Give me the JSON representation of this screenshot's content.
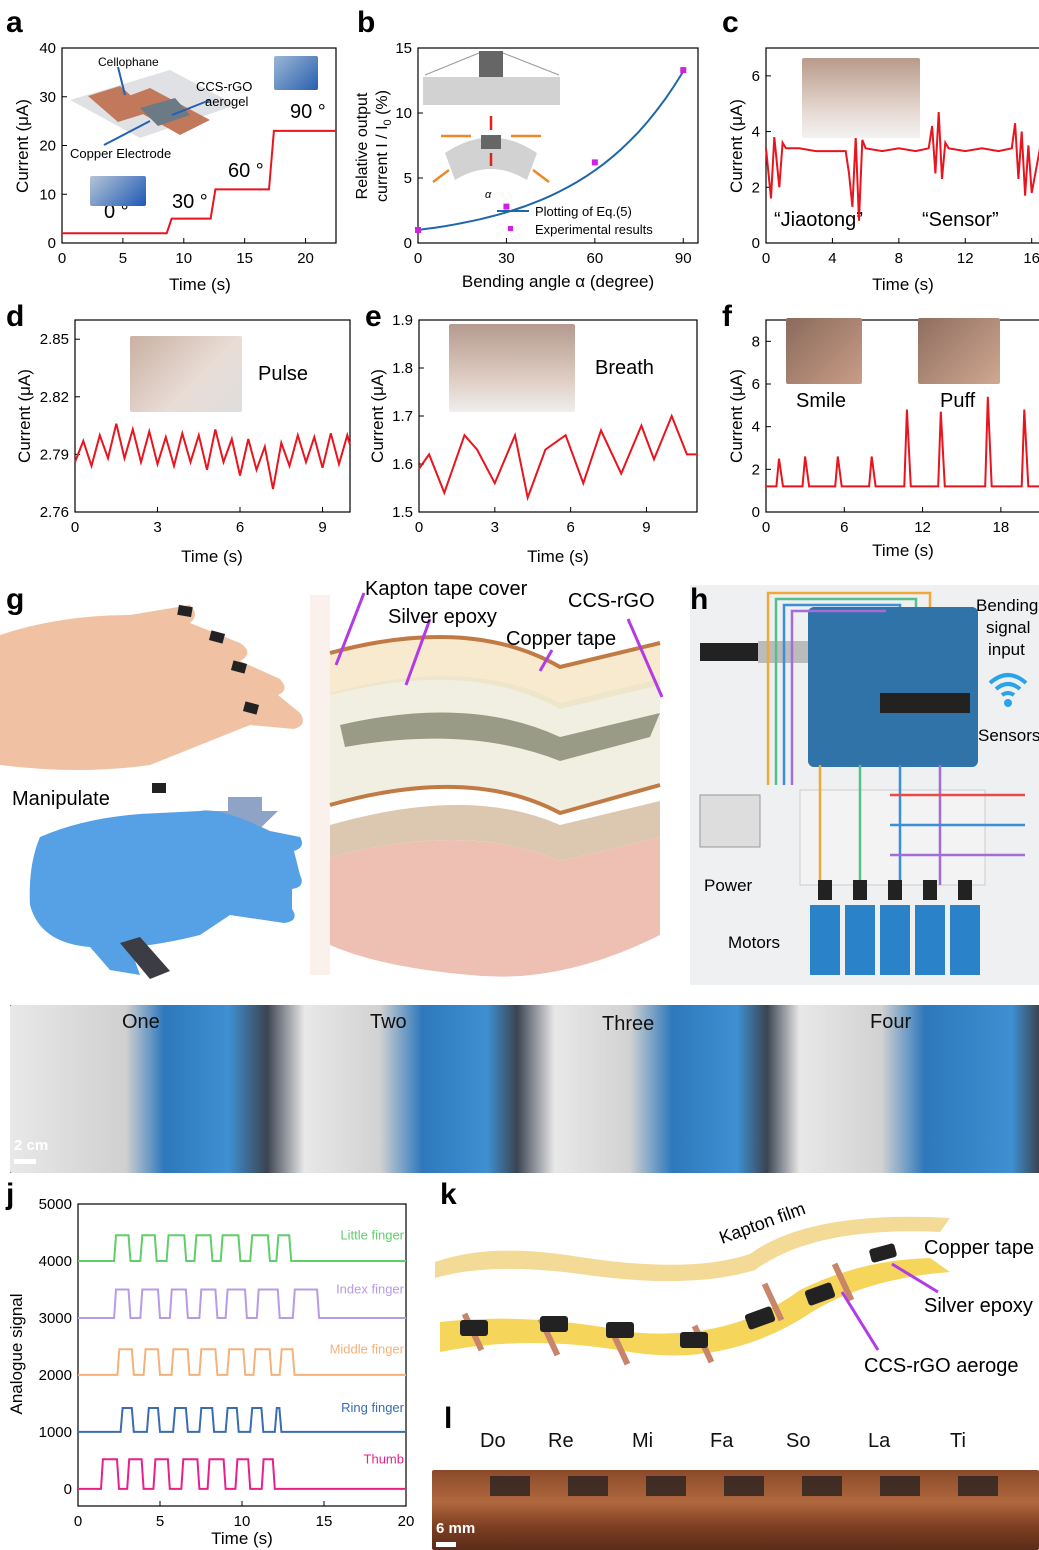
{
  "colors": {
    "red": "#e8141e",
    "blue": "#1f67a8",
    "magenta": "#d020e0",
    "purple": "#b640e6"
  },
  "panels": {
    "a": {
      "label": "a",
      "xlabel": "Time (s)",
      "ylabel": "Current (μA)",
      "xticks": [
        "0",
        "5",
        "10",
        "15",
        "20"
      ],
      "yticks": [
        "0",
        "10",
        "20",
        "30",
        "40"
      ],
      "angles": [
        "0 °",
        "30 °",
        "60 °",
        "90 °"
      ],
      "inset": {
        "cellophane": "Cellophane",
        "aerogel1": "CCS-rGO",
        "aerogel2": "aerogel",
        "copper": "Copper Electrode"
      }
    },
    "b": {
      "label": "b",
      "xlabel": "Bending angle α (degree)",
      "ylabel1": "Relative output",
      "ylabel2": "current I / I",
      "ylabel2sub": "0",
      "ylabel2end": " (%)",
      "xticks": [
        "0",
        "30",
        "60",
        "90"
      ],
      "yticks": [
        "0",
        "5",
        "10",
        "15"
      ],
      "legend": [
        "Plotting of Eq.(5)",
        "Experimental results"
      ],
      "alpha": "α"
    },
    "c": {
      "label": "c",
      "xlabel": "Time (s)",
      "ylabel": "Current (μA)",
      "xticks": [
        "0",
        "4",
        "8",
        "12",
        "16"
      ],
      "yticks": [
        "0",
        "2",
        "4",
        "6"
      ],
      "words": [
        "“Jiaotong”",
        "“Sensor”"
      ]
    },
    "d": {
      "label": "d",
      "xlabel": "Time (s)",
      "ylabel": "Current (μA)",
      "xticks": [
        "0",
        "3",
        "6",
        "9"
      ],
      "yticks": [
        "2.76",
        "2.79",
        "2.82",
        "2.85"
      ],
      "note": "Pulse"
    },
    "e": {
      "label": "e",
      "xlabel": "Time (s)",
      "ylabel": "Current (μA)",
      "xticks": [
        "0",
        "3",
        "6",
        "9"
      ],
      "yticks": [
        "1.5",
        "1.6",
        "1.7",
        "1.8",
        "1.9"
      ],
      "note": "Breath"
    },
    "f": {
      "label": "f",
      "xlabel": "Time (s)",
      "ylabel": "Current (μA)",
      "xticks": [
        "0",
        "6",
        "12",
        "18"
      ],
      "yticks": [
        "0",
        "2",
        "4",
        "6",
        "8"
      ],
      "notes": [
        "Smile",
        "Puff"
      ]
    },
    "g": {
      "label": "g",
      "manipulate": "Manipulate",
      "layers": [
        "Kapton tape cover",
        "Silver epoxy",
        "CCS-rGO",
        "Copper tape"
      ]
    },
    "h": {
      "label": "h",
      "bending": [
        "Bending",
        "signal",
        "input"
      ],
      "sensors": "Sensors",
      "power": "Power",
      "motors": "Motors"
    },
    "i": {
      "label": "i",
      "gestures": [
        "One",
        "Two",
        "Three",
        "Four"
      ],
      "scale": "2 cm"
    },
    "j": {
      "label": "j",
      "xlabel": "Time (s)",
      "ylabel": "Analogue signal",
      "xticks": [
        "0",
        "5",
        "10",
        "15",
        "20"
      ],
      "yticks": [
        "0",
        "1000",
        "2000",
        "3000",
        "4000",
        "5000"
      ],
      "fingers": [
        "Little finger",
        "Index finger",
        "Middle finger",
        "Ring finger",
        "Thumb"
      ]
    },
    "k": {
      "label": "k",
      "kapton": "Kapton film",
      "copper": "Copper tape",
      "silver": "Silver epoxy",
      "ccs": "CCS-rGO aeroge"
    },
    "l": {
      "label": "l",
      "notes": [
        "Do",
        "Re",
        "Mi",
        "Fa",
        "So",
        "La",
        "Ti"
      ],
      "scale": "6 mm"
    }
  },
  "chart_data": [
    {
      "panel": "a",
      "type": "line",
      "x": [
        0,
        8.6,
        9,
        12.2,
        12.6,
        17,
        17.4,
        22.5
      ],
      "y": [
        2,
        2,
        5,
        5,
        11,
        11,
        23,
        23
      ],
      "xlim": [
        0,
        22.5
      ],
      "ylim": [
        0,
        40
      ]
    },
    {
      "panel": "b",
      "type": "line",
      "series": [
        {
          "name": "Plotting of Eq.(5)",
          "x": [
            0,
            15,
            30,
            45,
            60,
            75,
            90
          ],
          "y": [
            1.0,
            1.8,
            3.0,
            4.7,
            7.0,
            9.8,
            13.2
          ]
        },
        {
          "name": "Experimental results",
          "x": [
            0,
            30,
            60,
            90
          ],
          "y": [
            1.0,
            2.8,
            6.2,
            13.3
          ]
        }
      ],
      "xlim": [
        0,
        95
      ],
      "ylim": [
        0,
        15
      ]
    },
    {
      "panel": "c",
      "type": "line",
      "x": [
        0,
        0.3,
        0.5,
        0.8,
        1,
        1.2,
        2,
        3,
        4.8,
        5,
        5.2,
        5.4,
        5.6,
        5.8,
        6,
        7,
        8,
        9,
        9.8,
        10,
        10.2,
        10.4,
        10.6,
        10.8,
        11,
        12,
        13,
        14,
        14.8,
        15,
        15.2,
        15.4,
        15.6,
        15.8,
        16,
        16.5
      ],
      "y": [
        3.4,
        1.6,
        3.8,
        2.0,
        3.6,
        3.4,
        3.4,
        3.3,
        3.3,
        2.5,
        1.3,
        3.8,
        0.8,
        3.7,
        3.4,
        3.3,
        3.4,
        3.3,
        3.4,
        4.2,
        2.5,
        4.7,
        2.3,
        3.6,
        3.4,
        3.3,
        3.4,
        3.3,
        3.4,
        4.3,
        2.3,
        4.0,
        1.7,
        3.5,
        1.8,
        3.4
      ],
      "xlim": [
        0,
        16.5
      ],
      "ylim": [
        0,
        7
      ]
    },
    {
      "panel": "d",
      "type": "line",
      "x": [
        0,
        0.3,
        0.6,
        0.9,
        1.2,
        1.5,
        1.8,
        2.1,
        2.4,
        2.7,
        3,
        3.3,
        3.6,
        3.9,
        4.2,
        4.5,
        4.8,
        5.1,
        5.4,
        5.7,
        6,
        6.3,
        6.6,
        6.9,
        7.2,
        7.5,
        7.8,
        8.1,
        8.4,
        8.7,
        9,
        9.3,
        9.6,
        9.9,
        10
      ],
      "y": [
        2.786,
        2.797,
        2.784,
        2.8,
        2.788,
        2.806,
        2.788,
        2.803,
        2.786,
        2.802,
        2.785,
        2.799,
        2.784,
        2.801,
        2.786,
        2.8,
        2.782,
        2.803,
        2.786,
        2.798,
        2.779,
        2.798,
        2.782,
        2.794,
        2.772,
        2.796,
        2.784,
        2.8,
        2.786,
        2.799,
        2.783,
        2.801,
        2.785,
        2.8,
        2.795
      ],
      "xlim": [
        0,
        10
      ],
      "ylim": [
        2.76,
        2.86
      ]
    },
    {
      "panel": "e",
      "type": "line",
      "x": [
        0,
        0.4,
        1,
        1.8,
        2.3,
        3,
        3.8,
        4.3,
        5,
        5.8,
        6.5,
        7.2,
        8,
        8.8,
        9.3,
        10,
        10.6,
        11
      ],
      "y": [
        1.59,
        1.62,
        1.54,
        1.66,
        1.63,
        1.56,
        1.66,
        1.53,
        1.63,
        1.66,
        1.56,
        1.67,
        1.58,
        1.68,
        1.61,
        1.7,
        1.62,
        1.62
      ],
      "xlim": [
        0,
        11
      ],
      "ylim": [
        1.5,
        1.9
      ]
    },
    {
      "panel": "f",
      "type": "line",
      "x": [
        0,
        0.8,
        1,
        1.3,
        2,
        2.8,
        3,
        3.3,
        4,
        5.3,
        5.5,
        5.8,
        7,
        7.9,
        8.1,
        8.4,
        10,
        10.6,
        10.8,
        11.1,
        12,
        13.2,
        13.4,
        13.7,
        15,
        16.8,
        17,
        17.3,
        18,
        19.6,
        19.8,
        20.1,
        21
      ],
      "y": [
        1.2,
        1.2,
        2.5,
        1.2,
        1.2,
        1.2,
        2.6,
        1.2,
        1.2,
        1.2,
        2.6,
        1.2,
        1.2,
        1.2,
        2.6,
        1.2,
        1.2,
        1.2,
        4.8,
        1.2,
        1.2,
        1.2,
        4.7,
        1.2,
        1.2,
        1.2,
        5.4,
        1.2,
        1.2,
        1.2,
        4.8,
        1.2,
        1.2
      ],
      "xlim": [
        0,
        21
      ],
      "ylim": [
        0,
        9
      ]
    },
    {
      "panel": "j",
      "type": "line",
      "categories": [
        "Little finger",
        "Index finger",
        "Middle finger",
        "Ring finger",
        "Thumb"
      ],
      "series": [
        {
          "name": "Little finger",
          "baseline": 4000,
          "high": 4450,
          "pulses": [
            [
              2.2,
              3.2
            ],
            [
              3.8,
              4.8
            ],
            [
              5.4,
              6.6
            ],
            [
              7.1,
              8.2
            ],
            [
              8.7,
              9.9
            ],
            [
              10.5,
              11.7
            ],
            [
              12.1,
              13
            ]
          ]
        },
        {
          "name": "Index finger",
          "baseline": 3000,
          "high": 3500,
          "pulses": [
            [
              2.2,
              3.2
            ],
            [
              3.8,
              5
            ],
            [
              5.6,
              6.7
            ],
            [
              7.4,
              8.5
            ],
            [
              9.0,
              10.3
            ],
            [
              10.9,
              12.3
            ],
            [
              13.1,
              14.7
            ]
          ]
        },
        {
          "name": "Middle finger",
          "baseline": 2000,
          "high": 2450,
          "pulses": [
            [
              2.4,
              3.4
            ],
            [
              4.0,
              5.0
            ],
            [
              5.7,
              6.8
            ],
            [
              7.4,
              8.5
            ],
            [
              9.1,
              10.2
            ],
            [
              10.7,
              11.8
            ],
            [
              12.3,
              13.2
            ]
          ]
        },
        {
          "name": "Ring finger",
          "baseline": 1000,
          "high": 1420,
          "pulses": [
            [
              2.6,
              3.4
            ],
            [
              4.2,
              5.0
            ],
            [
              5.8,
              6.7
            ],
            [
              7.4,
              8.3
            ],
            [
              9.0,
              9.8
            ],
            [
              10.5,
              11.3
            ],
            [
              12.0,
              12.4
            ]
          ]
        },
        {
          "name": "Thumb",
          "baseline": 0,
          "high": 520,
          "pulses": [
            [
              1.4,
              2.5
            ],
            [
              3.0,
              4.0
            ],
            [
              4.6,
              5.6
            ],
            [
              6.3,
              7.4
            ],
            [
              7.9,
              9.0
            ],
            [
              9.6,
              10.5
            ],
            [
              11.2,
              12.0
            ]
          ]
        }
      ],
      "xlim": [
        0,
        20
      ],
      "ylim": [
        -300,
        5000
      ]
    }
  ]
}
